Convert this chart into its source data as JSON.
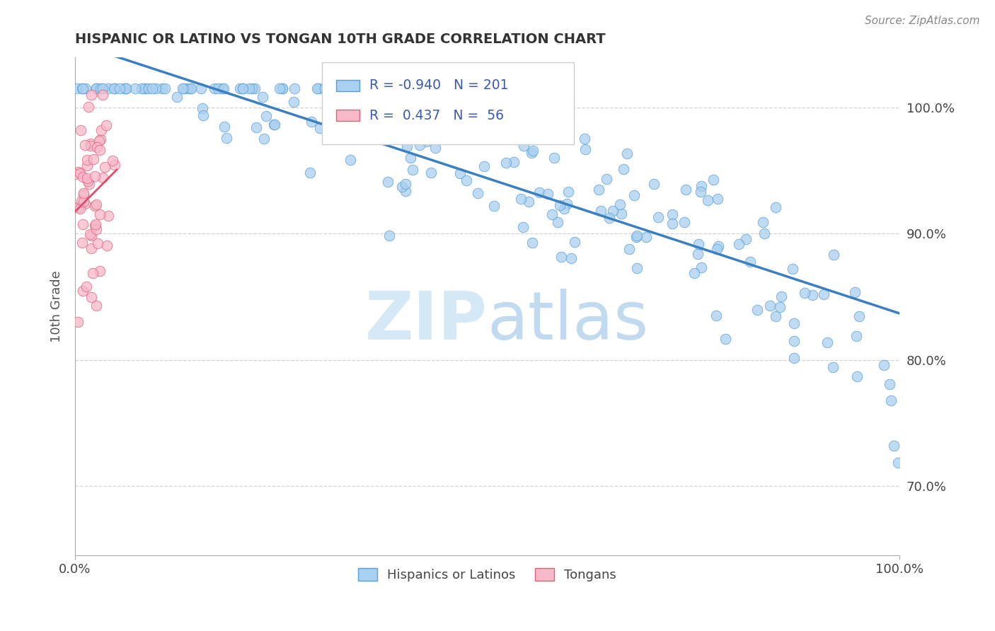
{
  "title": "HISPANIC OR LATINO VS TONGAN 10TH GRADE CORRELATION CHART",
  "source_text": "Source: ZipAtlas.com",
  "ylabel": "10th Grade",
  "legend": {
    "blue_label": "Hispanics or Latinos",
    "pink_label": "Tongans",
    "blue_R": "-0.940",
    "blue_N": "201",
    "pink_R": "0.437",
    "pink_N": "56"
  },
  "blue_fill_color": "#a8d0f0",
  "blue_edge_color": "#5a9fd4",
  "pink_fill_color": "#f7b8c8",
  "pink_edge_color": "#e0607a",
  "blue_line_color": "#3a7fc1",
  "pink_line_color": "#d94f70",
  "text_color": "#3a5aad",
  "background_color": "#ffffff",
  "grid_color": "#cccccc",
  "watermark_color": "#d5e8f5",
  "y_ticks": [
    0.7,
    0.8,
    0.9,
    1.0
  ],
  "y_tick_labels": [
    "70.0%",
    "80.0%",
    "90.0%",
    "100.0%"
  ],
  "xlim": [
    0.0,
    1.0
  ],
  "ylim": [
    0.645,
    1.04
  ]
}
